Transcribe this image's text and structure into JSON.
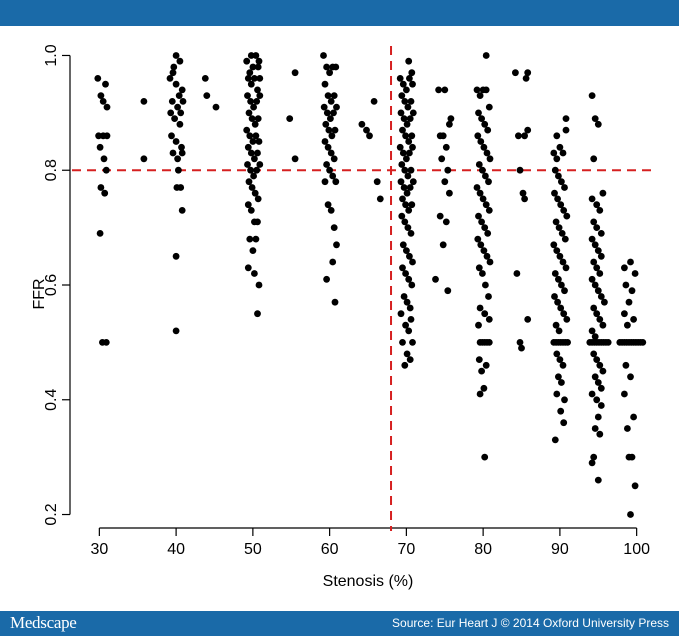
{
  "colors": {
    "header": "#1a6aa8",
    "footer": "#1a6aa8",
    "reference": "#d62020",
    "points": "#000000"
  },
  "footer": {
    "brand": "Medscape",
    "credit": "Source: Eur Heart J © 2014 Oxford University Press"
  },
  "chart_data": {
    "type": "scatter",
    "title": "",
    "xlabel": "Stenosis (%)",
    "ylabel": "FFR",
    "xlim": [
      28,
      102
    ],
    "ylim": [
      0.18,
      1.02
    ],
    "x_ticks": [
      30,
      40,
      50,
      60,
      70,
      80,
      90,
      100
    ],
    "y_ticks": [
      0.2,
      0.4,
      0.6,
      0.8,
      1.0
    ],
    "x_tick_labels": [
      "30",
      "40",
      "50",
      "60",
      "70",
      "80",
      "90",
      "100"
    ],
    "y_tick_labels": [
      "0.2",
      "0.4",
      "0.6",
      "0.8",
      "1.0"
    ],
    "grid": false,
    "reference_lines": {
      "x": 68,
      "y": 0.8,
      "style": "dashed"
    },
    "points": [
      [
        29.8,
        0.96
      ],
      [
        30.2,
        0.93
      ],
      [
        30.5,
        0.92
      ],
      [
        30.8,
        0.95
      ],
      [
        31,
        0.91
      ],
      [
        29.9,
        0.86
      ],
      [
        30.5,
        0.86
      ],
      [
        31,
        0.86
      ],
      [
        30.1,
        0.84
      ],
      [
        30.6,
        0.82
      ],
      [
        30.9,
        0.8
      ],
      [
        30.2,
        0.77
      ],
      [
        30.7,
        0.76
      ],
      [
        30.1,
        0.69
      ],
      [
        30.4,
        0.5
      ],
      [
        30.9,
        0.5
      ],
      [
        35.8,
        0.92
      ],
      [
        35.8,
        0.82
      ],
      [
        39.2,
        0.96
      ],
      [
        39.6,
        0.97
      ],
      [
        40,
        0.95
      ],
      [
        40.4,
        0.93
      ],
      [
        40.8,
        0.94
      ],
      [
        39.5,
        0.92
      ],
      [
        40.2,
        0.91
      ],
      [
        40.6,
        0.9
      ],
      [
        39.3,
        0.9
      ],
      [
        40.9,
        0.92
      ],
      [
        39.8,
        0.89
      ],
      [
        40.5,
        0.88
      ],
      [
        39.4,
        0.86
      ],
      [
        40,
        0.85
      ],
      [
        40.7,
        0.84
      ],
      [
        39.6,
        0.83
      ],
      [
        40.2,
        0.82
      ],
      [
        40.8,
        0.83
      ],
      [
        40.3,
        0.8
      ],
      [
        40.6,
        0.77
      ],
      [
        40.1,
        0.77
      ],
      [
        40.8,
        0.73
      ],
      [
        40,
        1.0
      ],
      [
        40.5,
        0.99
      ],
      [
        39.7,
        0.98
      ],
      [
        40,
        0.65
      ],
      [
        40,
        0.52
      ],
      [
        43.8,
        0.96
      ],
      [
        44,
        0.93
      ],
      [
        45.2,
        0.91
      ],
      [
        49.2,
        0.99
      ],
      [
        49.6,
        0.97
      ],
      [
        50,
        0.98
      ],
      [
        50.4,
        1.0
      ],
      [
        50.8,
        0.99
      ],
      [
        49.4,
        0.96
      ],
      [
        49.8,
        0.95
      ],
      [
        50.2,
        0.96
      ],
      [
        50.6,
        0.94
      ],
      [
        49.3,
        0.93
      ],
      [
        49.7,
        0.92
      ],
      [
        50.1,
        0.91
      ],
      [
        50.5,
        0.92
      ],
      [
        50.9,
        0.93
      ],
      [
        49.5,
        0.9
      ],
      [
        49.9,
        0.89
      ],
      [
        50.3,
        0.88
      ],
      [
        50.7,
        0.89
      ],
      [
        49.2,
        0.87
      ],
      [
        49.6,
        0.86
      ],
      [
        50,
        0.85
      ],
      [
        50.4,
        0.86
      ],
      [
        50.8,
        0.85
      ],
      [
        49.4,
        0.84
      ],
      [
        49.8,
        0.83
      ],
      [
        50.2,
        0.82
      ],
      [
        50.6,
        0.83
      ],
      [
        49.3,
        0.81
      ],
      [
        49.7,
        0.8
      ],
      [
        50.1,
        0.79
      ],
      [
        50.5,
        0.8
      ],
      [
        50.9,
        0.81
      ],
      [
        49.5,
        0.78
      ],
      [
        49.9,
        0.77
      ],
      [
        50.3,
        0.76
      ],
      [
        50.7,
        0.75
      ],
      [
        49.4,
        0.74
      ],
      [
        49.8,
        0.73
      ],
      [
        50.2,
        0.71
      ],
      [
        50.6,
        0.71
      ],
      [
        49.6,
        0.68
      ],
      [
        50.4,
        0.68
      ],
      [
        50,
        0.66
      ],
      [
        49.4,
        0.63
      ],
      [
        50.2,
        0.62
      ],
      [
        50.8,
        0.6
      ],
      [
        50.6,
        0.55
      ],
      [
        50.7,
        0.98
      ],
      [
        49.8,
        1.0
      ],
      [
        50.9,
        0.96
      ],
      [
        54.8,
        0.89
      ],
      [
        55.5,
        0.97
      ],
      [
        55.5,
        0.82
      ],
      [
        59.2,
        1.0
      ],
      [
        59.6,
        0.98
      ],
      [
        60,
        0.97
      ],
      [
        60.4,
        0.98
      ],
      [
        60.8,
        0.98
      ],
      [
        59.4,
        0.95
      ],
      [
        59.8,
        0.93
      ],
      [
        60.2,
        0.92
      ],
      [
        60.6,
        0.93
      ],
      [
        59.3,
        0.91
      ],
      [
        59.7,
        0.9
      ],
      [
        60.1,
        0.89
      ],
      [
        60.5,
        0.9
      ],
      [
        60.9,
        0.91
      ],
      [
        59.5,
        0.88
      ],
      [
        59.9,
        0.87
      ],
      [
        60.3,
        0.86
      ],
      [
        60.7,
        0.87
      ],
      [
        59.4,
        0.85
      ],
      [
        59.8,
        0.84
      ],
      [
        60.2,
        0.83
      ],
      [
        60.6,
        0.82
      ],
      [
        59.6,
        0.81
      ],
      [
        60,
        0.8
      ],
      [
        60.4,
        0.79
      ],
      [
        59.4,
        0.78
      ],
      [
        60.8,
        0.78
      ],
      [
        59.8,
        0.74
      ],
      [
        60.2,
        0.73
      ],
      [
        60.6,
        0.7
      ],
      [
        60.9,
        0.67
      ],
      [
        60.4,
        0.64
      ],
      [
        59.6,
        0.61
      ],
      [
        60.7,
        0.57
      ],
      [
        64.2,
        0.88
      ],
      [
        64.8,
        0.87
      ],
      [
        65.2,
        0.86
      ],
      [
        65.8,
        0.92
      ],
      [
        66.2,
        0.78
      ],
      [
        66.6,
        0.75
      ],
      [
        69.2,
        0.96
      ],
      [
        69.6,
        0.95
      ],
      [
        70,
        0.94
      ],
      [
        70.4,
        0.96
      ],
      [
        70.8,
        0.95
      ],
      [
        69.4,
        0.93
      ],
      [
        69.8,
        0.92
      ],
      [
        70.2,
        0.91
      ],
      [
        70.6,
        0.92
      ],
      [
        69.3,
        0.9
      ],
      [
        69.7,
        0.89
      ],
      [
        70.1,
        0.88
      ],
      [
        70.5,
        0.89
      ],
      [
        70.9,
        0.9
      ],
      [
        69.5,
        0.87
      ],
      [
        69.9,
        0.86
      ],
      [
        70.3,
        0.85
      ],
      [
        70.7,
        0.86
      ],
      [
        69.2,
        0.84
      ],
      [
        69.6,
        0.83
      ],
      [
        70,
        0.82
      ],
      [
        70.4,
        0.83
      ],
      [
        70.8,
        0.84
      ],
      [
        69.4,
        0.81
      ],
      [
        69.8,
        0.8
      ],
      [
        70.2,
        0.79
      ],
      [
        70.6,
        0.8
      ],
      [
        69.3,
        0.78
      ],
      [
        69.7,
        0.77
      ],
      [
        70.1,
        0.76
      ],
      [
        70.5,
        0.77
      ],
      [
        70.9,
        0.78
      ],
      [
        69.5,
        0.75
      ],
      [
        69.9,
        0.74
      ],
      [
        70.3,
        0.73
      ],
      [
        70.7,
        0.74
      ],
      [
        69.4,
        0.72
      ],
      [
        69.8,
        0.71
      ],
      [
        70.2,
        0.7
      ],
      [
        70.6,
        0.69
      ],
      [
        69.6,
        0.67
      ],
      [
        70,
        0.66
      ],
      [
        70.4,
        0.65
      ],
      [
        70.8,
        0.64
      ],
      [
        69.5,
        0.63
      ],
      [
        69.9,
        0.62
      ],
      [
        70.3,
        0.61
      ],
      [
        70.7,
        0.6
      ],
      [
        69.7,
        0.58
      ],
      [
        70.1,
        0.57
      ],
      [
        70.5,
        0.56
      ],
      [
        69.3,
        0.55
      ],
      [
        70.6,
        0.54
      ],
      [
        69.9,
        0.53
      ],
      [
        70.3,
        0.52
      ],
      [
        69.5,
        0.5
      ],
      [
        70.8,
        0.5
      ],
      [
        70.1,
        0.48
      ],
      [
        70.5,
        0.47
      ],
      [
        69.8,
        0.46
      ],
      [
        70.3,
        0.99
      ],
      [
        70.7,
        0.97
      ],
      [
        74.2,
        0.94
      ],
      [
        75,
        0.94
      ],
      [
        74.4,
        0.86
      ],
      [
        74.8,
        0.86
      ],
      [
        75.2,
        0.84
      ],
      [
        74.6,
        0.82
      ],
      [
        75.4,
        0.8
      ],
      [
        75,
        0.78
      ],
      [
        75.6,
        0.76
      ],
      [
        74.4,
        0.72
      ],
      [
        75.2,
        0.71
      ],
      [
        75.8,
        0.89
      ],
      [
        75.6,
        0.88
      ],
      [
        74.8,
        0.67
      ],
      [
        73.8,
        0.61
      ],
      [
        75.4,
        0.59
      ],
      [
        79.2,
        0.94
      ],
      [
        79.6,
        0.93
      ],
      [
        80,
        0.94
      ],
      [
        80.4,
        0.94
      ],
      [
        80.8,
        0.91
      ],
      [
        79.4,
        0.9
      ],
      [
        79.8,
        0.89
      ],
      [
        80.2,
        0.88
      ],
      [
        80.6,
        0.87
      ],
      [
        79.3,
        0.86
      ],
      [
        79.7,
        0.85
      ],
      [
        80.1,
        0.84
      ],
      [
        80.5,
        0.83
      ],
      [
        80.9,
        0.82
      ],
      [
        79.5,
        0.81
      ],
      [
        79.9,
        0.8
      ],
      [
        80.3,
        0.79
      ],
      [
        80.7,
        0.78
      ],
      [
        79.2,
        0.77
      ],
      [
        79.6,
        0.76
      ],
      [
        80,
        0.75
      ],
      [
        80.4,
        0.74
      ],
      [
        80.8,
        0.73
      ],
      [
        79.4,
        0.72
      ],
      [
        79.8,
        0.71
      ],
      [
        80.2,
        0.7
      ],
      [
        80.6,
        0.69
      ],
      [
        79.3,
        0.68
      ],
      [
        79.7,
        0.67
      ],
      [
        80.1,
        0.66
      ],
      [
        80.5,
        0.65
      ],
      [
        80.9,
        0.64
      ],
      [
        79.5,
        0.63
      ],
      [
        79.9,
        0.62
      ],
      [
        80.3,
        0.6
      ],
      [
        80.7,
        0.58
      ],
      [
        79.6,
        0.56
      ],
      [
        80.2,
        0.55
      ],
      [
        80.8,
        0.54
      ],
      [
        79.4,
        0.53
      ],
      [
        79.6,
        0.5
      ],
      [
        79.9,
        0.5
      ],
      [
        80.2,
        0.5
      ],
      [
        80.5,
        0.5
      ],
      [
        80.8,
        0.5
      ],
      [
        79.5,
        0.47
      ],
      [
        80.4,
        0.46
      ],
      [
        79.8,
        0.45
      ],
      [
        80.1,
        0.42
      ],
      [
        79.6,
        0.41
      ],
      [
        80.2,
        0.3
      ],
      [
        80.4,
        1.0
      ],
      [
        84.2,
        0.97
      ],
      [
        85.6,
        0.96
      ],
      [
        85.8,
        0.97
      ],
      [
        84.6,
        0.86
      ],
      [
        85.4,
        0.86
      ],
      [
        85.8,
        0.87
      ],
      [
        84.8,
        0.8
      ],
      [
        85.2,
        0.76
      ],
      [
        85.4,
        0.75
      ],
      [
        84.4,
        0.62
      ],
      [
        85.8,
        0.54
      ],
      [
        84.8,
        0.5
      ],
      [
        85,
        0.49
      ],
      [
        89.2,
        0.83
      ],
      [
        89.6,
        0.82
      ],
      [
        90,
        0.84
      ],
      [
        90.4,
        0.83
      ],
      [
        90.8,
        0.89
      ],
      [
        89.4,
        0.8
      ],
      [
        89.8,
        0.79
      ],
      [
        90.2,
        0.78
      ],
      [
        90.6,
        0.77
      ],
      [
        89.3,
        0.76
      ],
      [
        89.7,
        0.75
      ],
      [
        90.1,
        0.74
      ],
      [
        90.5,
        0.73
      ],
      [
        90.9,
        0.72
      ],
      [
        89.5,
        0.71
      ],
      [
        89.9,
        0.7
      ],
      [
        90.3,
        0.69
      ],
      [
        90.7,
        0.68
      ],
      [
        89.2,
        0.67
      ],
      [
        89.6,
        0.66
      ],
      [
        90,
        0.65
      ],
      [
        90.4,
        0.64
      ],
      [
        90.8,
        0.63
      ],
      [
        89.4,
        0.62
      ],
      [
        89.8,
        0.61
      ],
      [
        90.2,
        0.6
      ],
      [
        90.6,
        0.59
      ],
      [
        89.3,
        0.58
      ],
      [
        89.7,
        0.57
      ],
      [
        90.1,
        0.56
      ],
      [
        90.5,
        0.55
      ],
      [
        90.9,
        0.54
      ],
      [
        89.5,
        0.53
      ],
      [
        89.9,
        0.52
      ],
      [
        89.2,
        0.5
      ],
      [
        89.5,
        0.5
      ],
      [
        89.8,
        0.5
      ],
      [
        90.1,
        0.5
      ],
      [
        90.4,
        0.5
      ],
      [
        90.7,
        0.5
      ],
      [
        91,
        0.5
      ],
      [
        89.6,
        0.48
      ],
      [
        90,
        0.47
      ],
      [
        90.4,
        0.46
      ],
      [
        89.8,
        0.44
      ],
      [
        90.2,
        0.43
      ],
      [
        89.6,
        0.41
      ],
      [
        90.6,
        0.4
      ],
      [
        90.1,
        0.38
      ],
      [
        90.5,
        0.36
      ],
      [
        89.4,
        0.33
      ],
      [
        90.8,
        0.87
      ],
      [
        89.6,
        0.86
      ],
      [
        94.2,
        0.93
      ],
      [
        94.6,
        0.89
      ],
      [
        95,
        0.88
      ],
      [
        94.4,
        0.82
      ],
      [
        95.6,
        0.76
      ],
      [
        94.2,
        0.75
      ],
      [
        94.8,
        0.74
      ],
      [
        95.2,
        0.73
      ],
      [
        94.4,
        0.71
      ],
      [
        94.8,
        0.7
      ],
      [
        95.4,
        0.69
      ],
      [
        94.2,
        0.68
      ],
      [
        94.6,
        0.67
      ],
      [
        95,
        0.66
      ],
      [
        95.4,
        0.65
      ],
      [
        94.4,
        0.64
      ],
      [
        94.8,
        0.63
      ],
      [
        95.2,
        0.62
      ],
      [
        94.2,
        0.61
      ],
      [
        94.6,
        0.6
      ],
      [
        95,
        0.59
      ],
      [
        95.4,
        0.58
      ],
      [
        95.8,
        0.57
      ],
      [
        94.4,
        0.56
      ],
      [
        94.8,
        0.55
      ],
      [
        95.2,
        0.54
      ],
      [
        95.6,
        0.53
      ],
      [
        94.2,
        0.52
      ],
      [
        94.6,
        0.51
      ],
      [
        93.9,
        0.5
      ],
      [
        94.2,
        0.5
      ],
      [
        94.5,
        0.5
      ],
      [
        94.8,
        0.5
      ],
      [
        95.1,
        0.5
      ],
      [
        95.4,
        0.5
      ],
      [
        95.7,
        0.5
      ],
      [
        96,
        0.5
      ],
      [
        96.3,
        0.5
      ],
      [
        94.4,
        0.48
      ],
      [
        94.8,
        0.47
      ],
      [
        95.2,
        0.46
      ],
      [
        95.6,
        0.45
      ],
      [
        94.6,
        0.44
      ],
      [
        95,
        0.43
      ],
      [
        95.4,
        0.42
      ],
      [
        94.2,
        0.41
      ],
      [
        94.8,
        0.4
      ],
      [
        95.4,
        0.39
      ],
      [
        95,
        0.37
      ],
      [
        94.6,
        0.35
      ],
      [
        95.2,
        0.34
      ],
      [
        94.4,
        0.3
      ],
      [
        94.2,
        0.29
      ],
      [
        95,
        0.26
      ],
      [
        98.4,
        0.63
      ],
      [
        99.2,
        0.64
      ],
      [
        99.8,
        0.62
      ],
      [
        98.6,
        0.6
      ],
      [
        99.4,
        0.59
      ],
      [
        99,
        0.57
      ],
      [
        98.4,
        0.55
      ],
      [
        99.6,
        0.54
      ],
      [
        98.8,
        0.53
      ],
      [
        97.8,
        0.5
      ],
      [
        98.1,
        0.5
      ],
      [
        98.4,
        0.5
      ],
      [
        98.7,
        0.5
      ],
      [
        99,
        0.5
      ],
      [
        99.3,
        0.5
      ],
      [
        99.6,
        0.5
      ],
      [
        99.9,
        0.5
      ],
      [
        100.2,
        0.5
      ],
      [
        100.5,
        0.5
      ],
      [
        100.8,
        0.5
      ],
      [
        98.6,
        0.46
      ],
      [
        99.2,
        0.44
      ],
      [
        98.4,
        0.41
      ],
      [
        99.6,
        0.37
      ],
      [
        98.8,
        0.35
      ],
      [
        99,
        0.3
      ],
      [
        99.4,
        0.3
      ],
      [
        99.8,
        0.25
      ],
      [
        99.2,
        0.2
      ]
    ]
  }
}
